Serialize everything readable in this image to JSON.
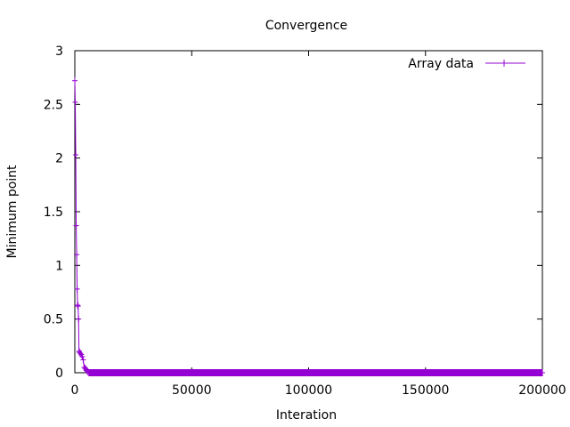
{
  "chart_data": {
    "type": "line",
    "title": "Convergence",
    "xlabel": "Interation",
    "ylabel": "Minimum point",
    "xlim": [
      0,
      200000
    ],
    "ylim": [
      0,
      3
    ],
    "xticks": [
      0,
      50000,
      100000,
      150000,
      200000
    ],
    "xtick_labels": [
      "0",
      "50000",
      "100000",
      "150000",
      "200000"
    ],
    "yticks": [
      0,
      0.5,
      1,
      1.5,
      2,
      2.5,
      3
    ],
    "ytick_labels": [
      "0",
      "0.5",
      "1",
      "1.5",
      "2",
      "2.5",
      "3"
    ],
    "grid": false,
    "legend_position": "top-right",
    "series": [
      {
        "name": "Array data",
        "color": "#9400d3",
        "marker": "plus",
        "x": [
          0,
          200,
          400,
          600,
          800,
          1000,
          1200,
          1400,
          1600,
          1800,
          2000,
          2400,
          2800,
          3200,
          3600,
          4000,
          4400,
          4800,
          5200,
          5600,
          6000,
          6500,
          7000,
          8000,
          10000,
          20000,
          40000,
          60000,
          80000,
          100000,
          120000,
          140000,
          160000,
          180000,
          200000
        ],
        "y": [
          2.72,
          2.52,
          2.03,
          1.37,
          1.1,
          0.78,
          0.63,
          0.62,
          0.5,
          0.2,
          0.19,
          0.18,
          0.17,
          0.15,
          0.12,
          0.05,
          0.04,
          0.03,
          0.02,
          0.01,
          0.0,
          0.0,
          0.0,
          0.0,
          0.0,
          0.0,
          0.0,
          0.0,
          0.0,
          0.0,
          0.0,
          0.0,
          0.0,
          0.0,
          0.0
        ],
        "dense_tail_x": [
          6000,
          200000
        ],
        "dense_tail_y": 0.0
      }
    ]
  }
}
